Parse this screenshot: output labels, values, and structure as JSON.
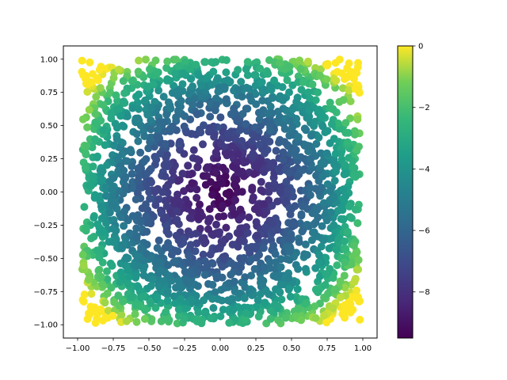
{
  "chart_data": {
    "type": "scatter",
    "title": "",
    "xlabel": "",
    "ylabel": "",
    "xlim": [
      -1.1,
      1.1
    ],
    "ylim": [
      -1.1,
      1.1
    ],
    "xticks": [
      -1.0,
      -0.75,
      -0.5,
      -0.25,
      0.0,
      0.25,
      0.5,
      0.75,
      1.0
    ],
    "xtick_labels": [
      "−1.00",
      "−0.75",
      "−0.50",
      "−0.25",
      "0.00",
      "0.25",
      "0.50",
      "0.75",
      "1.00"
    ],
    "yticks": [
      -1.0,
      -0.75,
      -0.5,
      -0.25,
      0.0,
      0.25,
      0.5,
      0.75,
      1.0
    ],
    "ytick_labels": [
      "−1.00",
      "−0.75",
      "−0.50",
      "−0.25",
      "0.00",
      "0.25",
      "0.50",
      "0.75",
      "1.00"
    ],
    "grid": false,
    "colormap": "viridis",
    "colorbar": {
      "vmin": -9.5,
      "vmax": 0,
      "ticks": [
        0,
        -2,
        -4,
        -6,
        -8
      ],
      "tick_labels": [
        "0",
        "−2",
        "−4",
        "−6",
        "−8"
      ]
    },
    "points": {
      "count": 2200,
      "x_range": [
        -0.97,
        0.98
      ],
      "y_range": [
        -0.99,
        1.0
      ],
      "value_min_at": [
        0.0,
        0.0
      ],
      "value_min": -9.4,
      "value_max": 0.0,
      "description_of_field": "value increases with distance from origin; highest near corners (-0.95,0.95),(0.9,0.95),(-0.85,-0.9),(0.9,-0.75)"
    }
  }
}
